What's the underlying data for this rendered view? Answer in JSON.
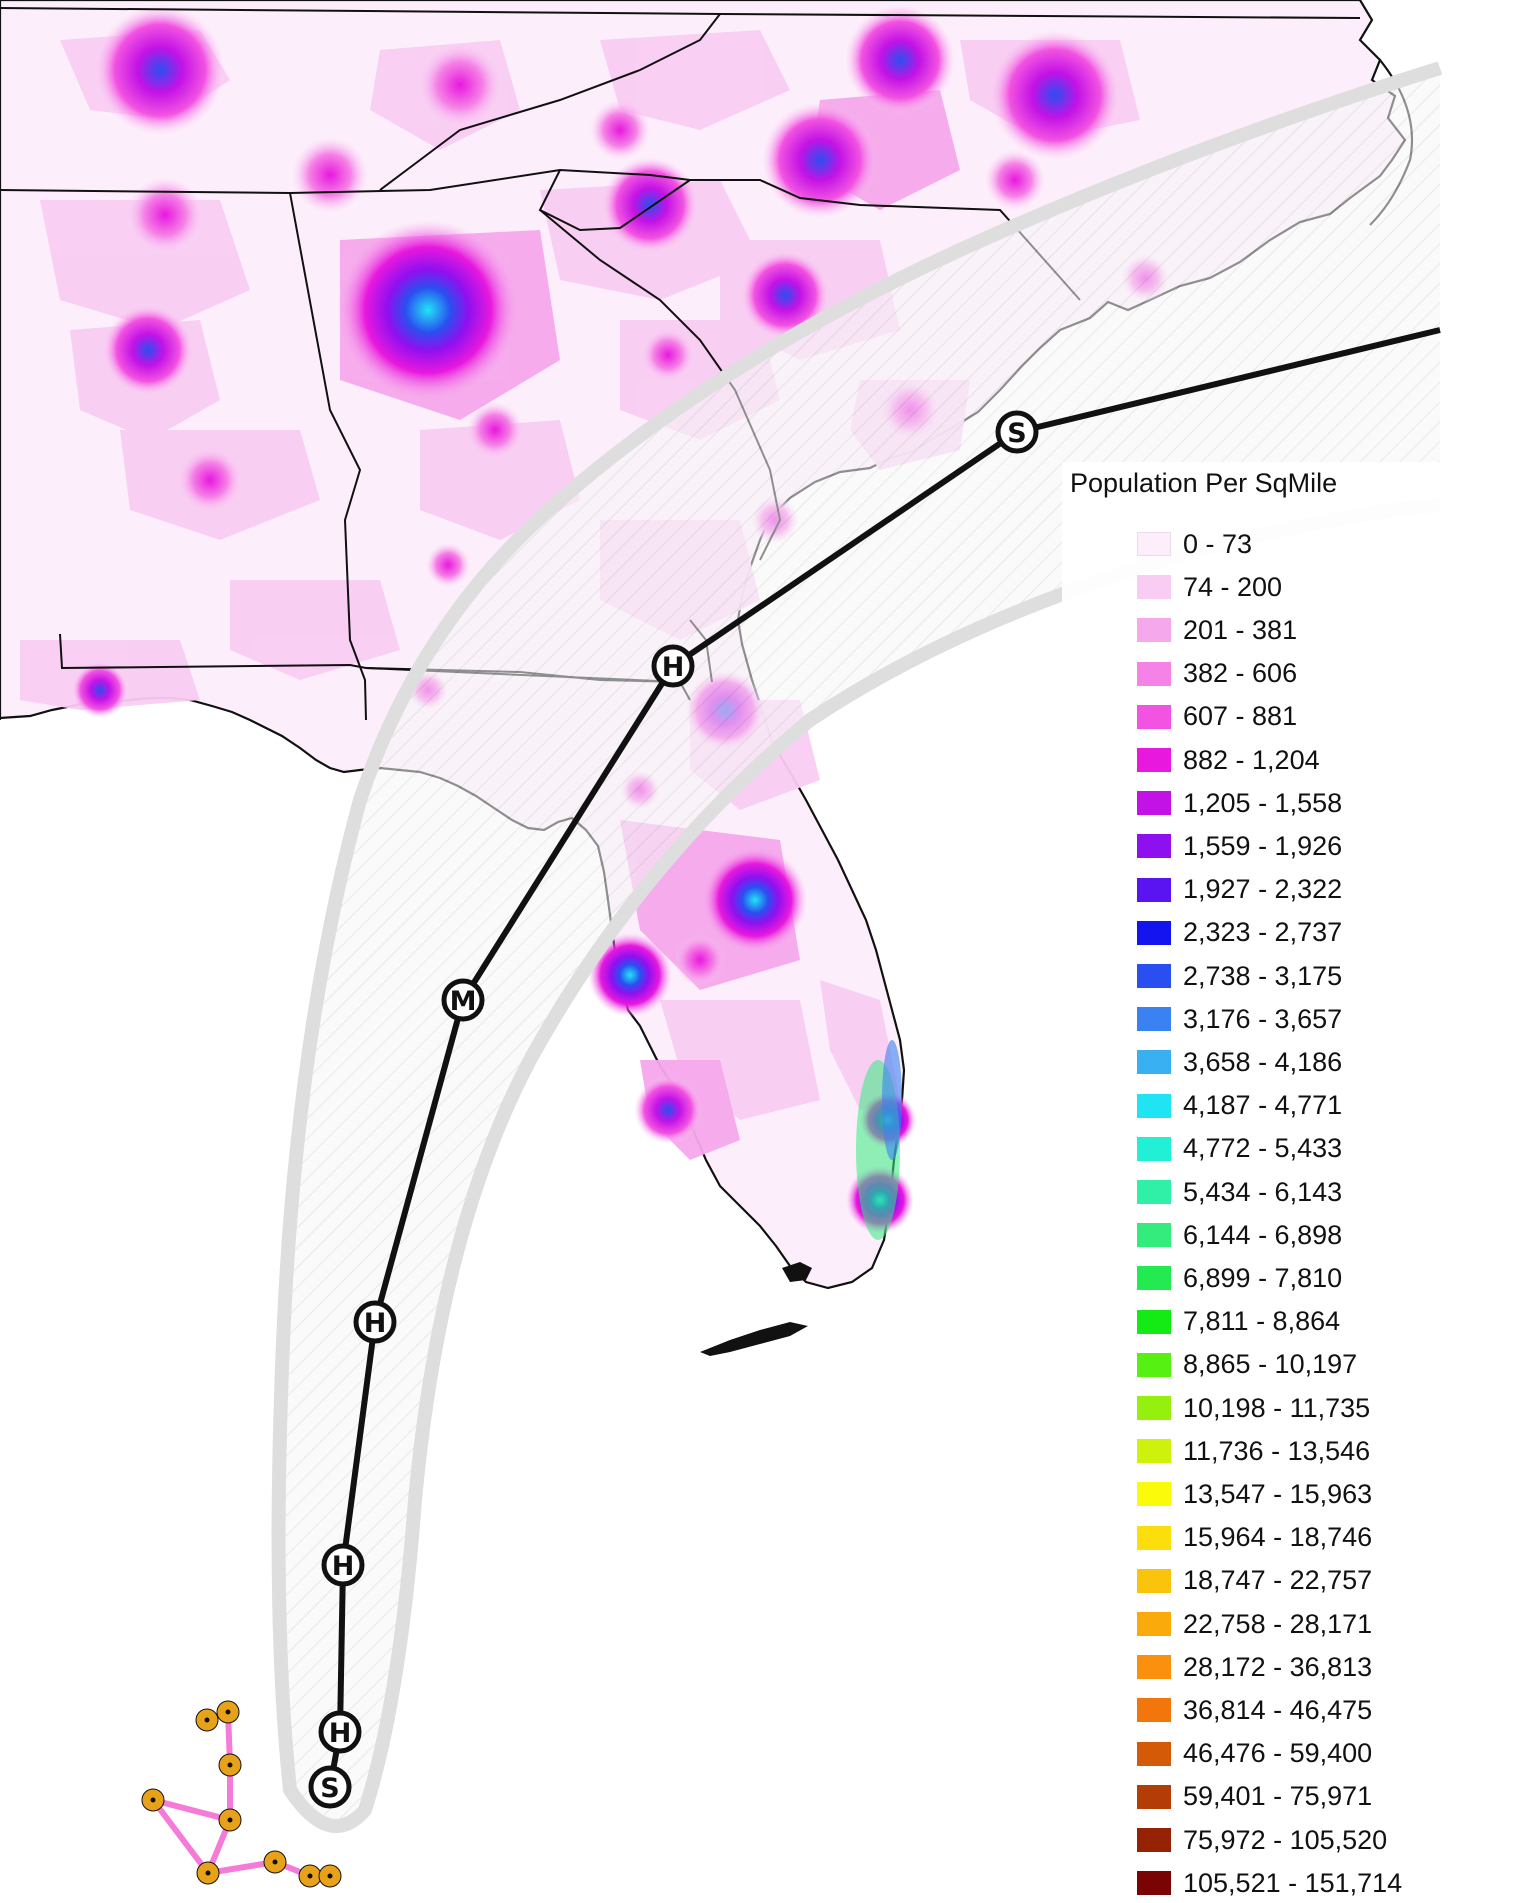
{
  "legend": {
    "title": "Population Per SqMile",
    "classes": [
      {
        "label": "0 - 73",
        "color": "#fdeefb"
      },
      {
        "label": "74 - 200",
        "color": "#f9cdf3"
      },
      {
        "label": "201 - 381",
        "color": "#f6a8ec"
      },
      {
        "label": "382 - 606",
        "color": "#f582e6"
      },
      {
        "label": "607 - 881",
        "color": "#f253e2"
      },
      {
        "label": "882 - 1,204",
        "color": "#e818de"
      },
      {
        "label": "1,205 - 1,558",
        "color": "#c312e6"
      },
      {
        "label": "1,559 - 1,926",
        "color": "#8f10ef"
      },
      {
        "label": "1,927 - 2,322",
        "color": "#5a14f2"
      },
      {
        "label": "2,323 - 2,737",
        "color": "#1414f0"
      },
      {
        "label": "2,738 - 3,175",
        "color": "#2a4ff0"
      },
      {
        "label": "3,176 - 3,657",
        "color": "#3a82f2"
      },
      {
        "label": "3,658 - 4,186",
        "color": "#38b0f2"
      },
      {
        "label": "4,187 - 4,771",
        "color": "#20e4f4"
      },
      {
        "label": "4,772 - 5,433",
        "color": "#22f0d6"
      },
      {
        "label": "5,434 - 6,143",
        "color": "#2ff0a6"
      },
      {
        "label": "6,144 - 6,898",
        "color": "#34ec7e"
      },
      {
        "label": "6,899 - 7,810",
        "color": "#24ea52"
      },
      {
        "label": "7,811 - 8,864",
        "color": "#14ea14"
      },
      {
        "label": "8,865 - 10,197",
        "color": "#56f012"
      },
      {
        "label": "10,198 - 11,735",
        "color": "#96f00e"
      },
      {
        "label": "11,736 - 13,546",
        "color": "#cef20c"
      },
      {
        "label": "13,547 - 15,963",
        "color": "#fafa0a"
      },
      {
        "label": "15,964 - 18,746",
        "color": "#fbde0c"
      },
      {
        "label": "18,747 - 22,757",
        "color": "#fbc40c"
      },
      {
        "label": "22,758 - 28,171",
        "color": "#fbaa0c"
      },
      {
        "label": "28,172 - 36,813",
        "color": "#fb900e"
      },
      {
        "label": "36,814 - 46,475",
        "color": "#f2760c"
      },
      {
        "label": "46,476 - 59,400",
        "color": "#d45a08"
      },
      {
        "label": "59,401 - 75,971",
        "color": "#b43c06"
      },
      {
        "label": "75,972 - 105,520",
        "color": "#962204"
      },
      {
        "label": "105,521 - 151,714",
        "color": "#7a0404"
      }
    ]
  },
  "storm_track": {
    "points": [
      {
        "label": "S"
      },
      {
        "label": "H"
      },
      {
        "label": "H"
      },
      {
        "label": "H"
      },
      {
        "label": "M"
      },
      {
        "label": "H"
      },
      {
        "label": "S"
      }
    ]
  },
  "colors": {
    "water": "#ffffff",
    "land": "#fdeefb",
    "cone_fill": "#f5f5f5",
    "cone_edge": "#dedede",
    "track": "#111111",
    "other_track": "#f57bd8",
    "other_track_dot": "#e8a21a",
    "boundary": "#111111"
  }
}
